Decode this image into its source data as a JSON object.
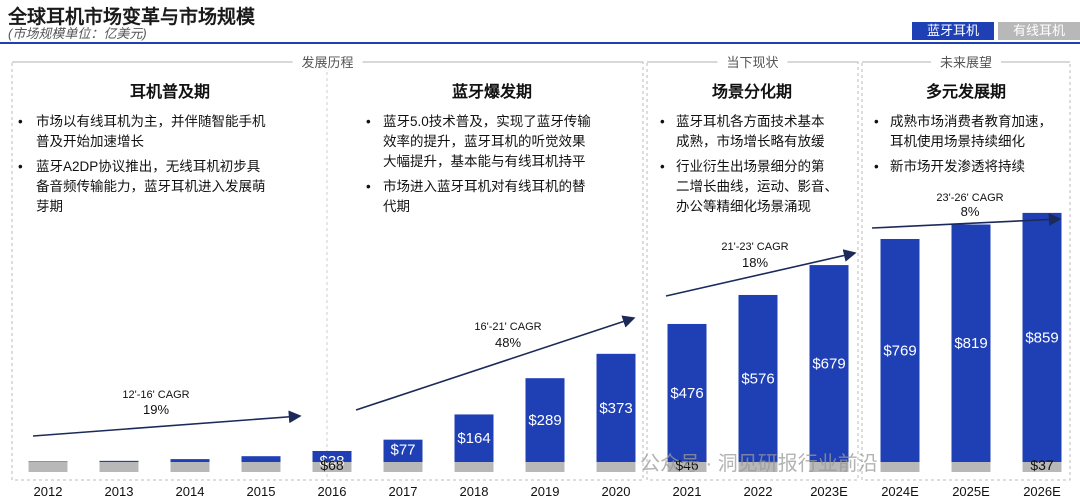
{
  "title": "全球耳机市场变革与市场规模",
  "subtitle": "(市场规模单位：亿美元)",
  "legend": [
    {
      "label": "蓝牙耳机",
      "color": "#1f3fb4"
    },
    {
      "label": "有线耳机",
      "color": "#b8b8b8"
    }
  ],
  "section_headers": [
    "发展历程",
    "当下现状",
    "未来展望"
  ],
  "phases": [
    {
      "title": "耳机普及期",
      "bullets": [
        [
          "市场以有线耳机为主，并伴随智能手机",
          "普及开始加速增长"
        ],
        [
          "蓝牙A2DP协议推出，无线耳机初步具",
          "备音频传输能力，蓝牙耳机进入发展萌",
          "芽期"
        ]
      ]
    },
    {
      "title": "蓝牙爆发期",
      "bullets": [
        [
          "蓝牙5.0技术普及，实现了蓝牙传输",
          "效率的提升，蓝牙耳机的听觉效果",
          "大幅提升，基本能与有线耳机持平"
        ],
        [
          "市场进入蓝牙耳机对有线耳机的替",
          "代期"
        ]
      ]
    },
    {
      "title": "场景分化期",
      "bullets": [
        [
          "蓝牙耳机各方面技术基本",
          "成熟，市场增长略有放缓"
        ],
        [
          "行业衍生出场景细分的第",
          "二增长曲线，运动、影音、",
          "办公等精细化场景涌现"
        ]
      ]
    },
    {
      "title": "多元发展期",
      "bullets": [
        [
          "成熟市场消费者教育加速，",
          "耳机使用场景持续细化"
        ],
        [
          "新市场开发渗透将持续"
        ]
      ]
    }
  ],
  "cagr": [
    {
      "period": "12'-16' CAGR",
      "value": "19%"
    },
    {
      "period": "16'-21' CAGR",
      "value": "48%"
    },
    {
      "period": "21'-23' CAGR",
      "value": "18%"
    },
    {
      "period": "23'-26' CAGR",
      "value": "8%"
    }
  ],
  "watermark": "公众号 · 洞见研报行业前沿",
  "chart_data": {
    "type": "bar",
    "stacked": true,
    "title": "全球耳机市场变革与市场规模",
    "ylabel": "市场规模单位：亿美元",
    "categories": [
      "2012",
      "2013",
      "2014",
      "2015",
      "2016",
      "2017",
      "2018",
      "2019",
      "2020",
      "2021",
      "2022",
      "2023E",
      "2024E",
      "2025E",
      "2026E"
    ],
    "series": [
      {
        "name": "有线耳机",
        "color": "#b8b8b8",
        "values": [
          68,
          68,
          68,
          68,
          68,
          67,
          63,
          58,
          52,
          46,
          43,
          41,
          39,
          38,
          37
        ]
      },
      {
        "name": "蓝牙耳机",
        "color": "#1f3fb4",
        "values": [
          2,
          4,
          10,
          20,
          38,
          77,
          164,
          289,
          373,
          476,
          576,
          679,
          769,
          819,
          859
        ]
      }
    ],
    "data_labels": {
      "2016": {
        "wireless": "$38",
        "wired": "$68"
      },
      "2017": {
        "wireless": "$77"
      },
      "2018": {
        "wireless": "$164"
      },
      "2019": {
        "wireless": "$289"
      },
      "2020": {
        "wireless": "$373"
      },
      "2021": {
        "wireless": "$476",
        "wired": "$46"
      },
      "2022": {
        "wireless": "$576"
      },
      "2023E": {
        "wireless": "$679"
      },
      "2024E": {
        "wireless": "$769"
      },
      "2025E": {
        "wireless": "$819"
      },
      "2026E": {
        "wireless": "$859",
        "wired": "$37"
      }
    },
    "ylim": [
      0,
      1000
    ]
  }
}
